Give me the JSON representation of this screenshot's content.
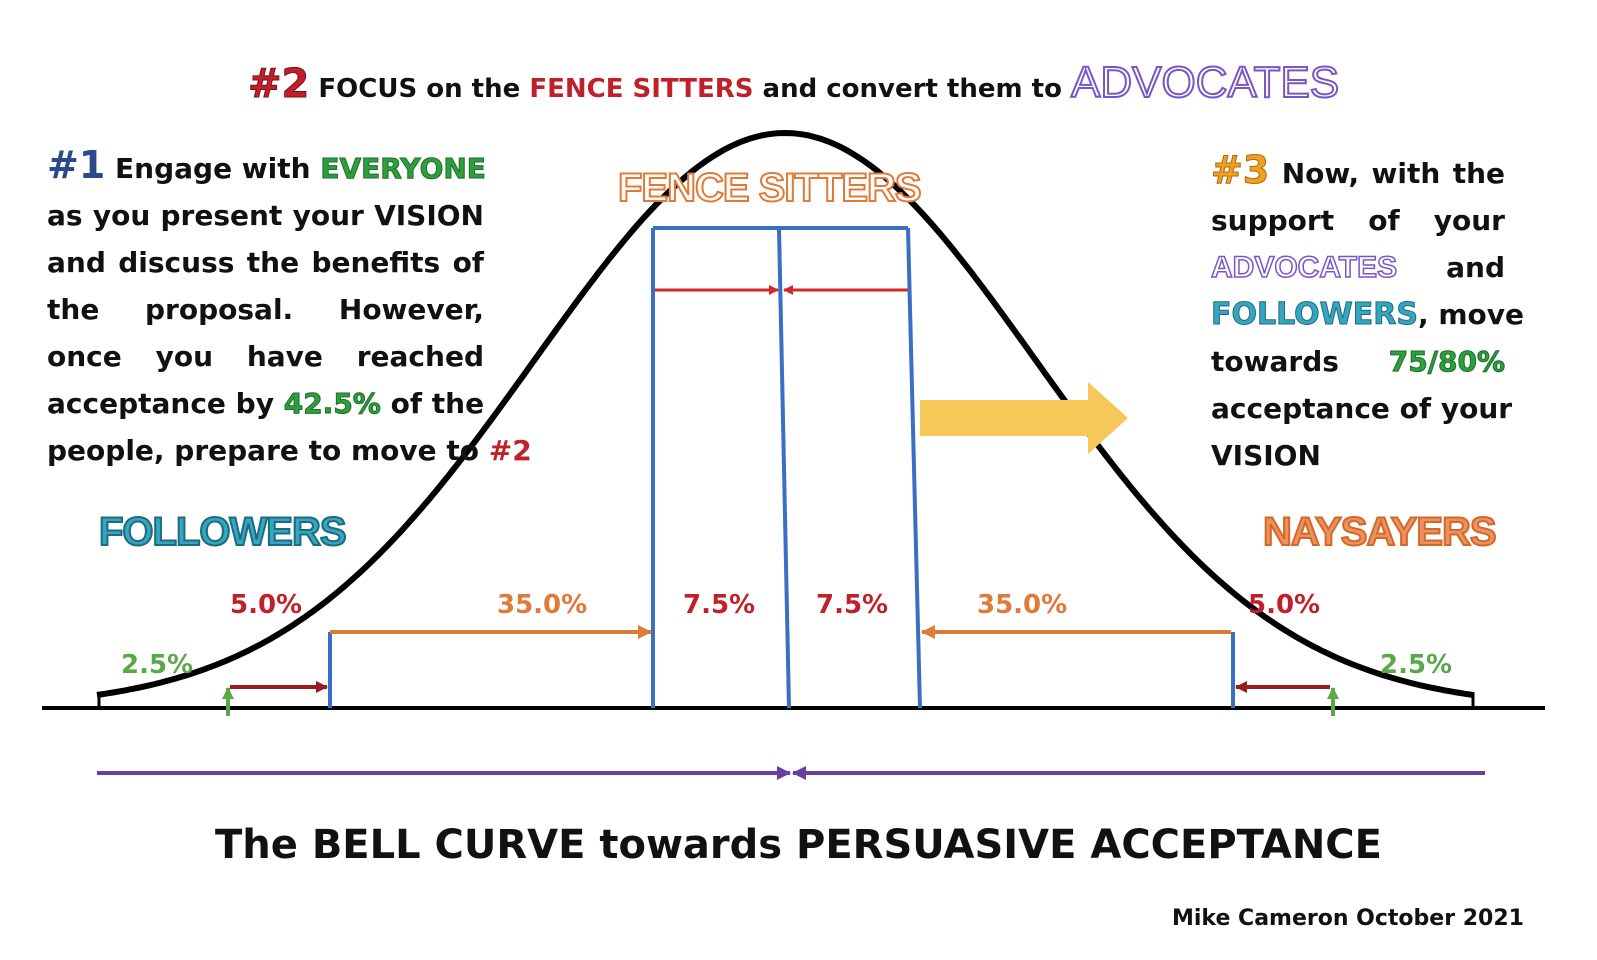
{
  "headline": {
    "num": "#2",
    "focus": "FOCUS on the",
    "fence": "FENCE SITTERS",
    "convert": "and convert them to",
    "advocates": "ADVOCATES"
  },
  "step1": {
    "num": "#1",
    "l1_pre": "Engage with",
    "l1_em": "EVERYONE",
    "l2": "as you present your VISION",
    "l3": "and discuss the benefits of",
    "l4": "the proposal. However,",
    "l5": "once you have reached",
    "l6_pre": "acceptance by",
    "l6_em": "42.5%",
    "l6_post": "of the",
    "l7_pre": "people, prepare to move to",
    "l7_em": "#2"
  },
  "step3": {
    "num": "#3",
    "l1": "Now, with the",
    "l2": "support of your",
    "l3_em": "ADVOCATES",
    "l3_post": "and",
    "l4_em": "FOLLOWERS",
    "l4_post": ", move",
    "l5_pre": "towards",
    "l5_em": "75/80%",
    "l6": "acceptance of your",
    "l7": "VISION"
  },
  "labels": {
    "fence_sitters": "FENCE SITTERS",
    "followers": "FOLLOWERS",
    "naysayers": "NAYSAYERS"
  },
  "percentages": {
    "left_2_5": "2.5%",
    "left_5": "5.0%",
    "left_35": "35.0%",
    "left_7_5": "7.5%",
    "right_7_5": "7.5%",
    "right_35": "35.0%",
    "right_5": "5.0%",
    "right_2_5": "2.5%"
  },
  "title": "The BELL CURVE towards PERSUASIVE ACCEPTANCE",
  "credit": "Mike Cameron October 2021",
  "colors": {
    "red": "#c0202a",
    "darkred": "#9b1b1f",
    "green": "#2e9e3e",
    "teal": "#36a6c0",
    "purple": "#7a55c8",
    "orange": "#e07a38",
    "gold": "#f0a020",
    "blue": "#3a6fc4",
    "arrow_yellow": "#f6c85a",
    "curve": "#000000",
    "axis_purple": "#6a3fa0",
    "navy": "#2a4a8a",
    "olive_green": "#5aa84a"
  }
}
